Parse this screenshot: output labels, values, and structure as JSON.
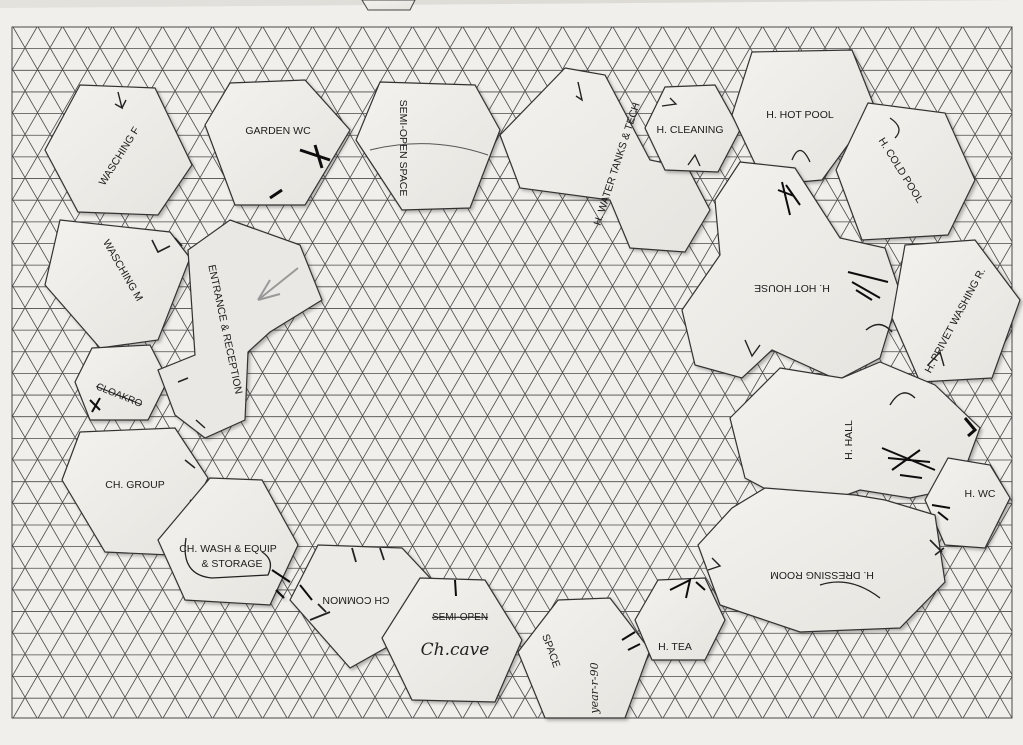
{
  "pieces": {
    "washing_f": "WASCHING F",
    "garden_wc": "GARDEN WC",
    "semi_open_space": "SEMI-OPEN SPACE",
    "water_tanks": "H. WATER TANKS & TECH",
    "cleaning": "H. CLEANING",
    "hot_pool": "H. HOT POOL",
    "cold_pool": "H. COLD POOL",
    "washing_m": "WASCHING M",
    "entrance": "ENTRANCE & RECEPTION",
    "hot_house": "H. HOT HOUSE",
    "privet_washing": "H. PRIVET WASHING R.",
    "cloakroom": "CLOAKRO",
    "hall": "H. HALL",
    "ch_group": "CH. GROUP",
    "wc": "H. WC",
    "ch_wash_1": "CH. WASH & EQUIP",
    "ch_wash_2": "& STORAGE",
    "dressing_room": "H. DRESSING ROOM",
    "ch_common": "CH COMMON",
    "semi_open_struck": "SEMI-OPEN",
    "ch_cave": "Ch.cave",
    "space": "SPACE",
    "year_round": "year-r-90",
    "tea": "H. TEA"
  }
}
